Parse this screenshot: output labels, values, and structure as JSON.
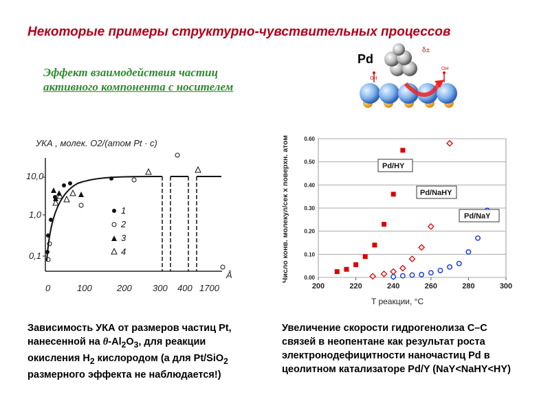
{
  "slide": {
    "title": "Некоторые примеры структурно-чувствительных процессов",
    "subtitle_line1": "Эффект взаимодействия частиц",
    "subtitle_line2": "активного компонента с носителем"
  },
  "illustration": {
    "pd_label": "Pd",
    "charge_label": "δ±",
    "oh_left": "OH",
    "oh_right": "OH"
  },
  "left_chart": {
    "ylabel": "УКА , молек. O2/(атом Pt · c)",
    "y_ticks": [
      "10,0",
      "1,0",
      "0,1"
    ],
    "x_ticks": [
      "0",
      "100",
      "200",
      "300",
      "400",
      "1700"
    ],
    "x_unit": "Å",
    "legend": [
      {
        "marker": "•",
        "label": "1"
      },
      {
        "marker": "○",
        "label": "2"
      },
      {
        "marker": "▲",
        "label": "3"
      },
      {
        "marker": "△",
        "label": "4"
      }
    ]
  },
  "chart_data": {
    "type": "scatter",
    "ylabel": "Число конв. молекул/сек х поверхн. атом",
    "xlabel": "T реакции, °C",
    "xlim": [
      200,
      300
    ],
    "ylim": [
      0,
      0.6
    ],
    "x_ticks": [
      200,
      220,
      240,
      260,
      280,
      300
    ],
    "y_ticks": [
      "0.00",
      "0.10",
      "0.20",
      "0.30",
      "0.40",
      "0.50",
      "0.60"
    ],
    "series": [
      {
        "name": "Pd/HY",
        "marker": "square",
        "color": "#dd0000",
        "points": [
          [
            210,
            0.025
          ],
          [
            215,
            0.035
          ],
          [
            220,
            0.055
          ],
          [
            225,
            0.09
          ],
          [
            230,
            0.14
          ],
          [
            235,
            0.23
          ],
          [
            240,
            0.36
          ],
          [
            245,
            0.55
          ]
        ]
      },
      {
        "name": "Pd/NaHY",
        "marker": "diamond",
        "color": "#dd0000",
        "points": [
          [
            229,
            0.005
          ],
          [
            235,
            0.015
          ],
          [
            240,
            0.025
          ],
          [
            245,
            0.04
          ],
          [
            250,
            0.08
          ],
          [
            255,
            0.13
          ],
          [
            260,
            0.22
          ],
          [
            270,
            0.58
          ]
        ]
      },
      {
        "name": "Pd/NaY",
        "marker": "circle",
        "color": "#1a3fd6",
        "points": [
          [
            240,
            0.003
          ],
          [
            245,
            0.007
          ],
          [
            250,
            0.01
          ],
          [
            255,
            0.012
          ],
          [
            260,
            0.02
          ],
          [
            265,
            0.03
          ],
          [
            270,
            0.045
          ],
          [
            275,
            0.06
          ],
          [
            280,
            0.11
          ],
          [
            285,
            0.17
          ],
          [
            290,
            0.29
          ]
        ]
      }
    ]
  },
  "captions": {
    "left_l1": "Зависимость УКА от размеров частиц Pt,",
    "left_l2a": "нанесенной на ",
    "left_theta": "θ",
    "left_l2b": "-Al",
    "left_l2_sub1": "2",
    "left_l2c": "O",
    "left_l2_sub2": "3",
    "left_l2d": ", для реакции",
    "left_l3a": "окисления H",
    "left_l3_sub": "2",
    "left_l3b": " кислородом (а для Pt/SiO",
    "left_l3_sub2": "2",
    "left_l4": "размерного эффекта не наблюдается!)",
    "right_l1": "Увеличение скорости гидрогенолиза С–С",
    "right_l2": "связей в неопентане как результат роста",
    "right_l3": "электронодефицитности наночастиц Pd в",
    "right_l4": "цеолитном катализаторе Pd/Y (NaY<NaHY<HY)"
  }
}
